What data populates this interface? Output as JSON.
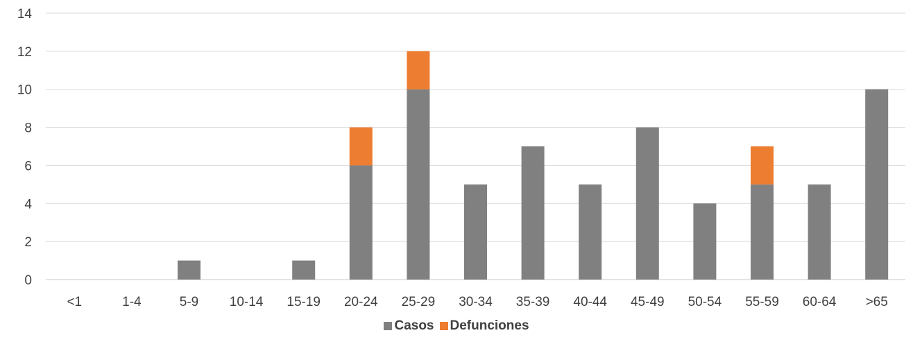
{
  "chart_data": {
    "type": "bar",
    "stacked": true,
    "categories": [
      "<1",
      "1-4",
      "5-9",
      "10-14",
      "15-19",
      "20-24",
      "25-29",
      "30-34",
      "35-39",
      "40-44",
      "45-49",
      "50-54",
      "55-59",
      "60-64",
      ">65"
    ],
    "series": [
      {
        "name": "Casos",
        "color": "#808080",
        "values": [
          0,
          0,
          1,
          0,
          1,
          6,
          10,
          5,
          7,
          5,
          8,
          4,
          5,
          5,
          10
        ]
      },
      {
        "name": "Defunciones",
        "color": "#ED7D31",
        "values": [
          0,
          0,
          0,
          0,
          0,
          2,
          2,
          0,
          0,
          0,
          0,
          0,
          2,
          0,
          0
        ]
      }
    ],
    "title": "",
    "xlabel": "",
    "ylabel": "",
    "ylim": [
      0,
      14
    ],
    "yticks": [
      0,
      2,
      4,
      6,
      8,
      10,
      12,
      14
    ],
    "grid": true,
    "legend_position": "bottom"
  }
}
